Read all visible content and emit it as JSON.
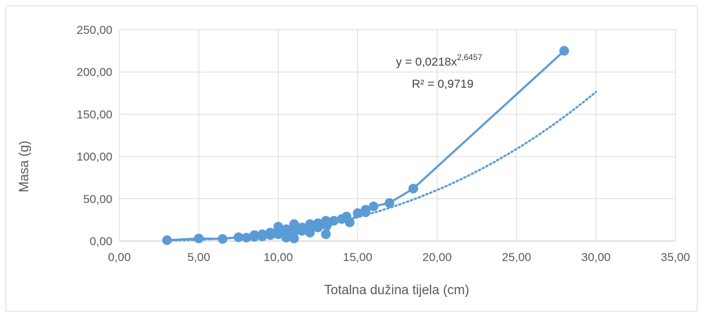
{
  "chart_data": {
    "type": "scatter",
    "title": "",
    "xlabel": "Totalna dužina tijela (cm)",
    "ylabel": "Masa (g)",
    "xlim": [
      0,
      35
    ],
    "ylim": [
      0,
      250
    ],
    "x_ticks": [
      "0,00",
      "5,00",
      "10,00",
      "15,00",
      "20,00",
      "25,00",
      "30,00",
      "35,00"
    ],
    "y_ticks": [
      "0,00",
      "50,00",
      "100,00",
      "150,00",
      "200,00",
      "250,00"
    ],
    "grid": true,
    "colors": {
      "series": "#5b9bd5"
    },
    "series": [
      {
        "style": "markers-with-line",
        "points": [
          [
            3.0,
            1.0
          ],
          [
            5.0,
            3.0
          ],
          [
            6.5,
            2.5
          ],
          [
            7.5,
            4.5
          ],
          [
            8.0,
            4.0
          ],
          [
            8.5,
            7.0
          ],
          [
            8.5,
            5.0
          ],
          [
            9.0,
            8.0
          ],
          [
            9.0,
            5.5
          ],
          [
            9.5,
            10.0
          ],
          [
            9.5,
            7.0
          ],
          [
            10.0,
            17.0
          ],
          [
            10.0,
            12.0
          ],
          [
            10.0,
            8.0
          ],
          [
            10.5,
            14.0
          ],
          [
            10.5,
            9.0
          ],
          [
            10.5,
            4.0
          ],
          [
            11.0,
            20.0
          ],
          [
            11.0,
            15.0
          ],
          [
            11.0,
            11.0
          ],
          [
            11.0,
            3.0
          ],
          [
            11.5,
            16.0
          ],
          [
            11.5,
            12.0
          ],
          [
            12.0,
            20.0
          ],
          [
            12.0,
            14.0
          ],
          [
            12.0,
            10.0
          ],
          [
            12.5,
            21.0
          ],
          [
            12.5,
            16.0
          ],
          [
            13.0,
            24.0
          ],
          [
            13.0,
            19.0
          ],
          [
            13.0,
            8.0
          ],
          [
            13.5,
            24.0
          ],
          [
            14.0,
            26.0
          ],
          [
            14.3,
            29.0
          ],
          [
            14.5,
            22.0
          ],
          [
            15.0,
            33.0
          ],
          [
            15.5,
            37.0
          ],
          [
            15.5,
            34.0
          ],
          [
            16.0,
            41.0
          ],
          [
            17.0,
            45.0
          ],
          [
            18.5,
            62.0
          ],
          [
            28.0,
            225.0
          ]
        ]
      }
    ],
    "trendline": {
      "type": "power",
      "style": "dotted",
      "coefficient": 0.0218,
      "exponent": 2.6457,
      "x_range": [
        3,
        30
      ]
    },
    "annotations": {
      "equation_base": "y = 0,0218x",
      "equation_exponent": "2,6457",
      "r_squared": "R² = 0,9719"
    }
  }
}
